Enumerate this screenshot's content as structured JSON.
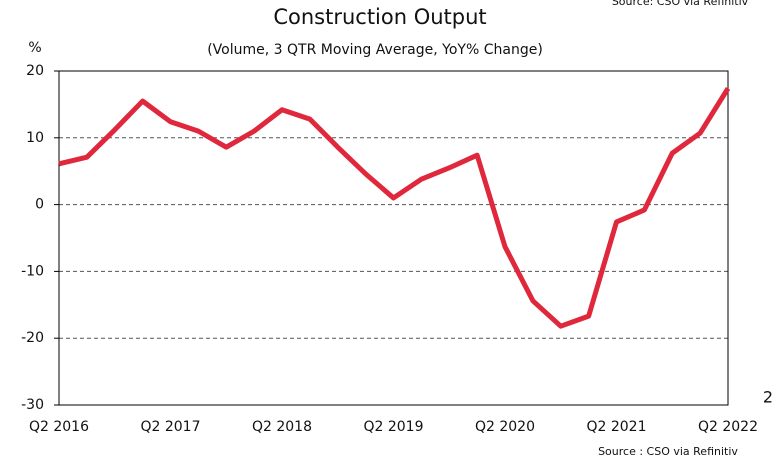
{
  "chart_data": {
    "type": "line",
    "title": "Construction Output",
    "subtitle": "(Volume, 3 QTR Moving Average, YoY% Change)",
    "y_label": "%",
    "source": "Source : CSO via Refinitiv",
    "source_top": "Source: CSO via Refinitiv",
    "edge_text": "2",
    "categories": [
      "Q2 2016",
      null,
      null,
      null,
      "Q2 2017",
      null,
      null,
      null,
      "Q2 2018",
      null,
      null,
      null,
      "Q2 2019",
      null,
      null,
      null,
      "Q2 2020",
      null,
      null,
      null,
      "Q2 2021",
      null,
      null,
      null,
      "Q2 2022"
    ],
    "series": [
      {
        "name": "Construction Output",
        "color": "#e0283c",
        "values": [
          6.1,
          7.1,
          11.2,
          15.5,
          12.4,
          11.0,
          8.6,
          11.0,
          14.2,
          12.8,
          8.6,
          4.6,
          1.0,
          3.8,
          5.5,
          7.4,
          -6.3,
          -14.4,
          -18.2,
          -16.7,
          -2.6,
          -0.8,
          7.7,
          10.7,
          17.4
        ]
      }
    ],
    "ylim": [
      -30,
      20
    ],
    "yticks": [
      -30,
      -20,
      -10,
      0,
      10,
      20
    ],
    "grid": true
  }
}
